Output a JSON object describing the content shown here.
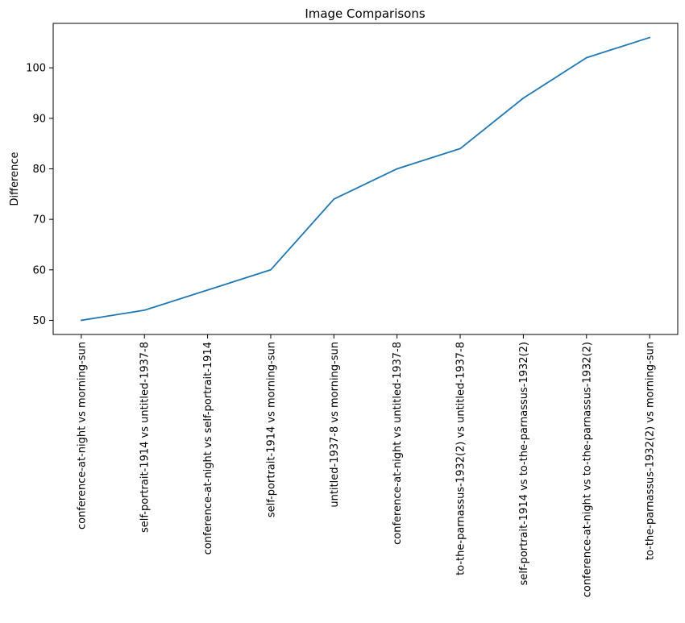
{
  "chart_data": {
    "type": "line",
    "title": "Image Comparisons",
    "xlabel": "",
    "ylabel": "Difference",
    "categories": [
      "conference-at-night vs morning-sun",
      "self-portrait-1914 vs untitled-1937-8",
      "conference-at-night vs self-portrait-1914",
      "self-portrait-1914 vs morning-sun",
      "untitled-1937-8 vs morning-sun",
      "conference-at-night vs untitled-1937-8",
      "to-the-parnassus-1932(2) vs untitled-1937-8",
      "self-portrait-1914 vs to-the-parnassus-1932(2)",
      "conference-at-night vs to-the-parnassus-1932(2)",
      "to-the-parnassus-1932(2) vs morning-sun"
    ],
    "series": [
      {
        "values": [
          50,
          52,
          56,
          60,
          74,
          80,
          84,
          94,
          102,
          106
        ]
      }
    ],
    "ylim": [
      47.2,
      108.8
    ],
    "yticks": [
      50,
      60,
      70,
      80,
      90,
      100
    ],
    "grid": false,
    "line_color": "#1f77b4"
  }
}
